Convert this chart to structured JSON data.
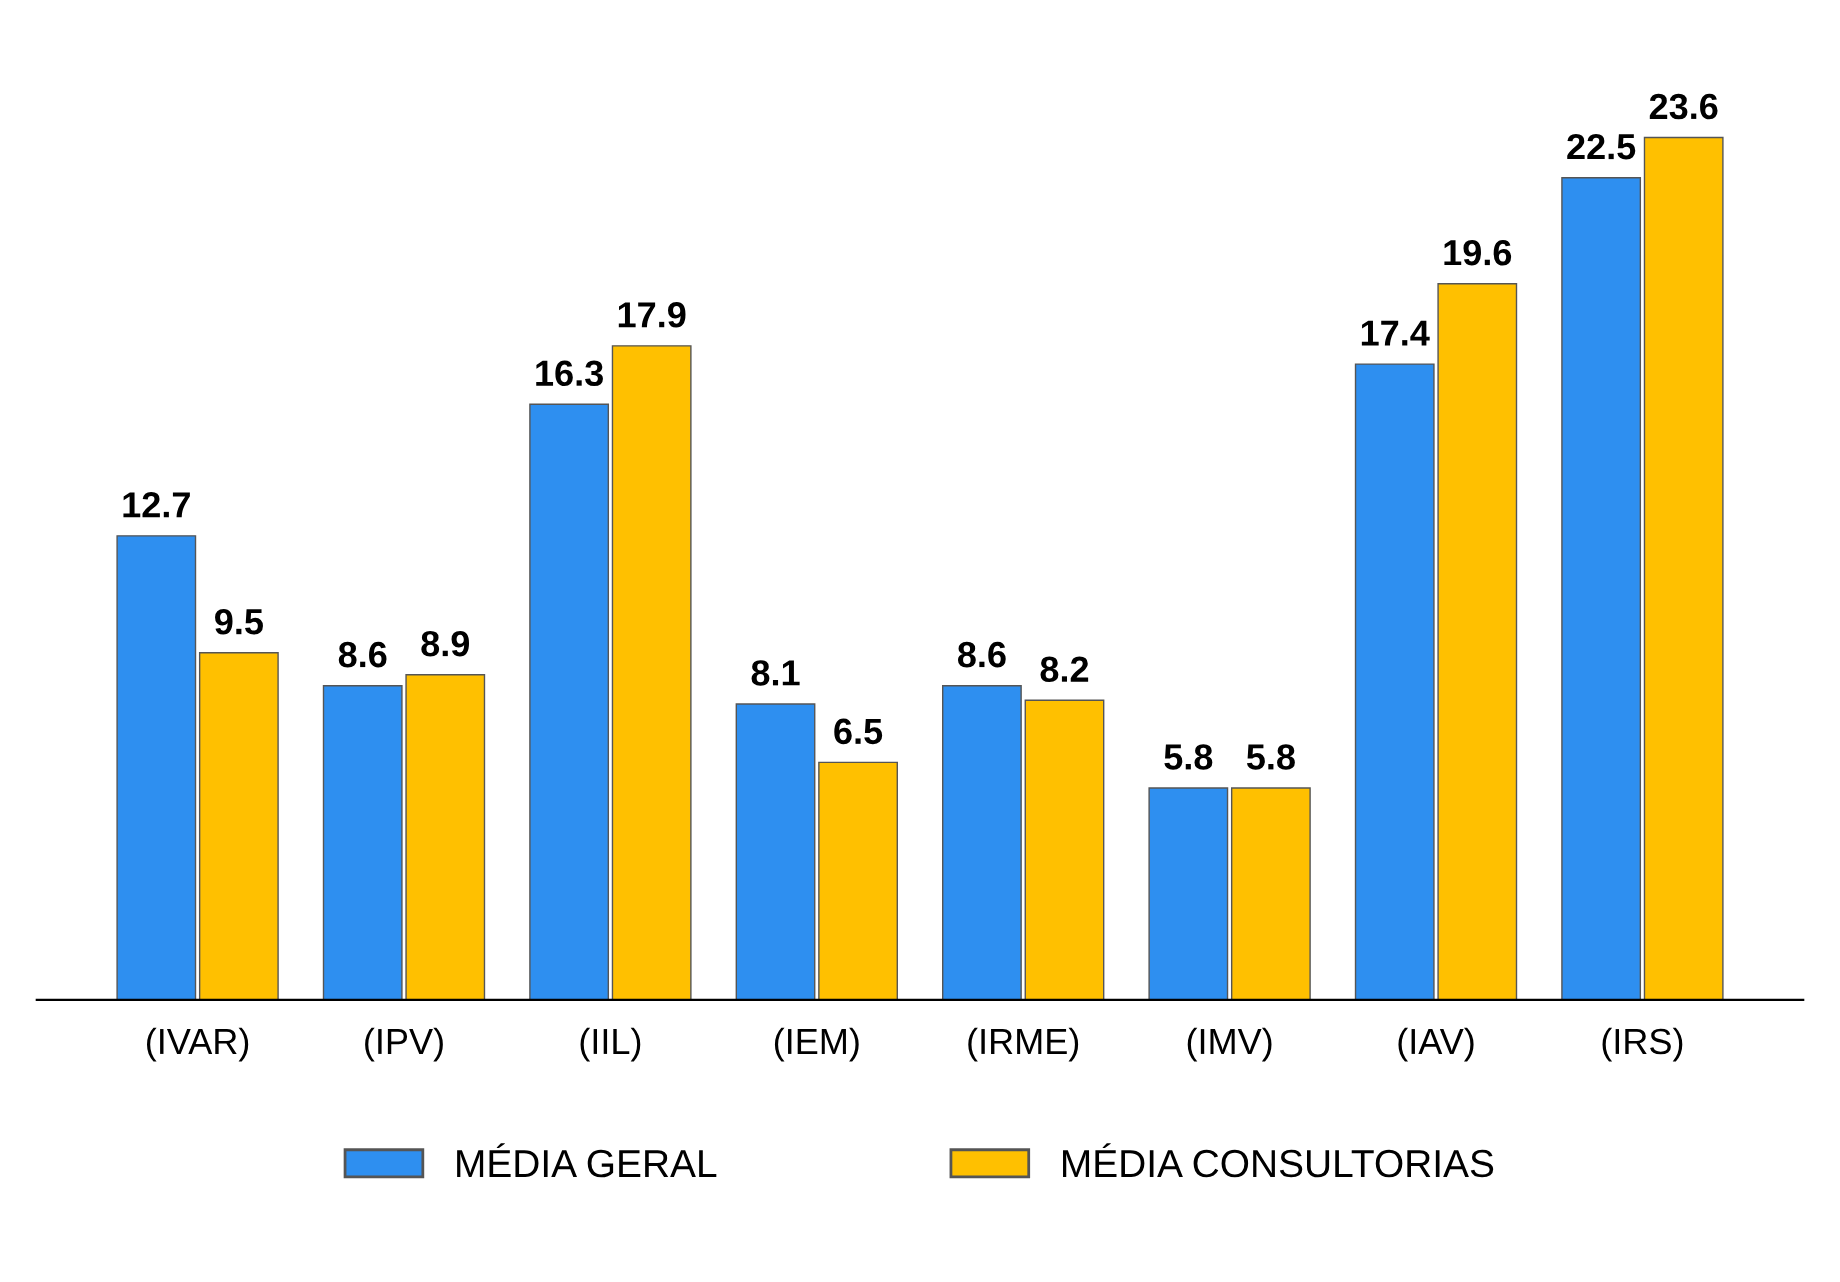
{
  "chart_data": {
    "type": "bar",
    "categories": [
      "(IVAR)",
      "(IPV)",
      "(IIL)",
      "(IEM)",
      "(IRME)",
      "(IMV)",
      "(IAV)",
      "(IRS)"
    ],
    "series": [
      {
        "name": "MÉDIA GERAL",
        "color": "#2e8ff0",
        "values": [
          12.7,
          8.6,
          16.3,
          8.1,
          8.6,
          5.8,
          17.4,
          22.5
        ]
      },
      {
        "name": "MÉDIA CONSULTORIAS",
        "color": "#ffc000",
        "values": [
          9.5,
          8.9,
          17.9,
          6.5,
          8.2,
          5.8,
          19.6,
          23.6
        ]
      }
    ],
    "data_labels": true,
    "legend": "bottom",
    "grid": false
  }
}
